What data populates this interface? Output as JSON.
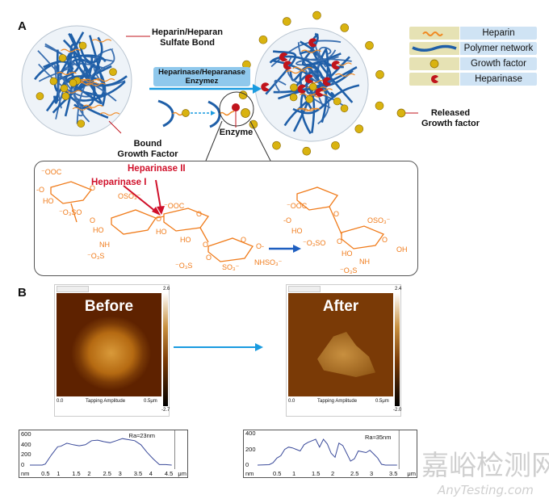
{
  "panel_a": {
    "letter": "A",
    "bond_label": [
      "Heparin/Heparan",
      "Sulfate Bond"
    ],
    "enzyme_arrow_label": [
      "Heparinase/Heparanase",
      "Enzymez"
    ],
    "bound_label": [
      "Bound",
      "Growth Factor"
    ],
    "enzyme_label": "Enzyme",
    "released_label": [
      "Released",
      "Growth factor"
    ],
    "legend": [
      {
        "icon": "heparin-strand-icon",
        "label": "Heparin",
        "color": "#f08a24"
      },
      {
        "icon": "polymer-strand-icon",
        "label": "Polymer network",
        "color": "#1f5fa8"
      },
      {
        "icon": "gold-sphere-icon",
        "label": "Growth factor",
        "color": "#d9b310"
      },
      {
        "icon": "pacman-icon",
        "label": "Heparinase",
        "color": "#c0141c"
      }
    ],
    "chemistry": {
      "heparinase_1": "Heparinase I",
      "heparinase_2": "Heparinase II",
      "substrate_groups": [
        "⁻OOC",
        "-O",
        "HO",
        "⁻O₃SO",
        "O",
        "OSO₃⁻",
        "O",
        "HO",
        "NH",
        "⁻O₃S",
        "O",
        "⁻OOC",
        "O",
        "HO",
        "HO",
        "O",
        "O",
        "O",
        "⁻O₃S",
        "SO₃⁻",
        "NHSO₃⁻",
        "O-"
      ],
      "product_groups": [
        "⁻OOC",
        "-O",
        "O",
        "HO",
        "⁻O₃SO",
        "O",
        "OSO₃⁻",
        "O",
        "HO",
        "OH",
        "NH",
        "⁻O₃S"
      ],
      "structure_color": "#f07b1a",
      "arrow_color": "#1f5fc0"
    }
  },
  "panel_b": {
    "letter": "B",
    "before": {
      "title": "Before",
      "scale_top": "2.6",
      "scale_bottom": "-2.7",
      "axis_start": "0.0",
      "mode": "Tapping Amplitude",
      "axis_end": "0.5μm"
    },
    "after": {
      "title": "After",
      "scale_top": "2.4",
      "scale_bottom": "-2.0",
      "axis_start": "0.0",
      "mode": "Tapping Amplitude",
      "axis_end": "0.5μm"
    },
    "arrow_color": "#1a9be0"
  },
  "chart_data": [
    {
      "type": "line",
      "xlabel": "μm",
      "ylabel": "nm",
      "annotation": "Ra≈23nm",
      "xticks": [
        "0.5",
        "1",
        "1.5",
        "2",
        "2.5",
        "3",
        "3.5",
        "4",
        "4.5"
      ],
      "yticks": [
        "0",
        "200",
        "400",
        "600"
      ],
      "xlim": [
        0,
        4.7
      ],
      "ylim": [
        0,
        620
      ],
      "x": [
        0,
        0.4,
        0.5,
        0.7,
        0.9,
        1.0,
        1.2,
        1.4,
        1.6,
        1.8,
        2.0,
        2.2,
        2.4,
        2.6,
        2.8,
        3.0,
        3.2,
        3.4,
        3.6,
        3.8,
        4.0,
        4.2,
        4.4,
        4.6
      ],
      "y": [
        0,
        0,
        20,
        200,
        360,
        370,
        430,
        400,
        380,
        400,
        480,
        490,
        460,
        440,
        480,
        520,
        500,
        480,
        400,
        250,
        120,
        10,
        10,
        0
      ],
      "color": "#3a4a9a"
    },
    {
      "type": "line",
      "xlabel": "μm",
      "ylabel": "nm",
      "annotation": "Ra≈35nm",
      "xticks": [
        "0.5",
        "1",
        "1.5",
        "2",
        "2.5",
        "3",
        "3.5"
      ],
      "yticks": [
        "0",
        "200",
        "400"
      ],
      "xlim": [
        0,
        3.65
      ],
      "ylim": [
        0,
        430
      ],
      "x": [
        0,
        0.3,
        0.4,
        0.5,
        0.6,
        0.7,
        0.8,
        0.9,
        1.0,
        1.1,
        1.2,
        1.3,
        1.4,
        1.5,
        1.6,
        1.7,
        1.8,
        1.9,
        2.0,
        2.1,
        2.2,
        2.3,
        2.4,
        2.5,
        2.6,
        2.7,
        2.8,
        2.9,
        3.0,
        3.1,
        3.2,
        3.3,
        3.6
      ],
      "y": [
        0,
        5,
        30,
        90,
        120,
        200,
        230,
        220,
        200,
        180,
        260,
        290,
        310,
        330,
        230,
        330,
        270,
        150,
        100,
        280,
        250,
        150,
        50,
        80,
        180,
        170,
        160,
        190,
        140,
        90,
        10,
        0,
        0
      ],
      "color": "#3a4a9a"
    }
  ],
  "watermark": {
    "cn": "嘉峪检测网",
    "en": "AnyTesting.com"
  }
}
